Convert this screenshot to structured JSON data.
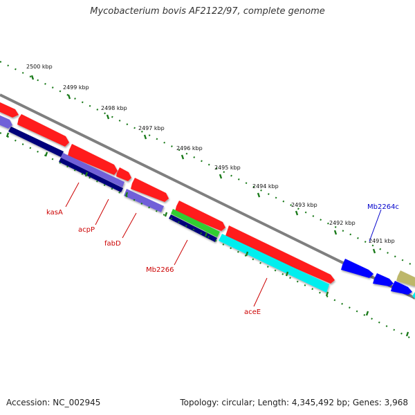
{
  "title": "Mycobacterium bovis AF2122/97, complete genome",
  "footer": {
    "accession": "Accession: NC_002945",
    "summary": "Topology: circular; Length: 4,345,492 bp; Genes: 3,968"
  },
  "colors": {
    "backbone": "#808080",
    "tick": "#1a7a1a",
    "cds": "#ff0000",
    "gene_label": "#cc0000",
    "gene_label_alt": "#0000cc",
    "blue_feature": "#0000ff",
    "light_blue_feature": "#6a5acd",
    "dark_blue_feature": "#00007a",
    "green_feature": "#33cc33",
    "cyan_feature": "#00ffff",
    "olive_feature": "#bdb76b"
  },
  "ticks": [
    {
      "label": "2500 kbp"
    },
    {
      "label": "2499 kbp"
    },
    {
      "label": "2498 kbp"
    },
    {
      "label": "2497 kbp"
    },
    {
      "label": "2496 kbp"
    },
    {
      "label": "2495 kbp"
    },
    {
      "label": "2494 kbp"
    },
    {
      "label": "2493 kbp"
    },
    {
      "label": "2492 kbp"
    },
    {
      "label": "2491 kbp"
    }
  ],
  "gene_labels": [
    {
      "name": "kasA"
    },
    {
      "name": "acpP"
    },
    {
      "name": "fabD"
    },
    {
      "name": "Mb2266"
    },
    {
      "name": "aceE"
    },
    {
      "name": "Mb2264c"
    }
  ]
}
